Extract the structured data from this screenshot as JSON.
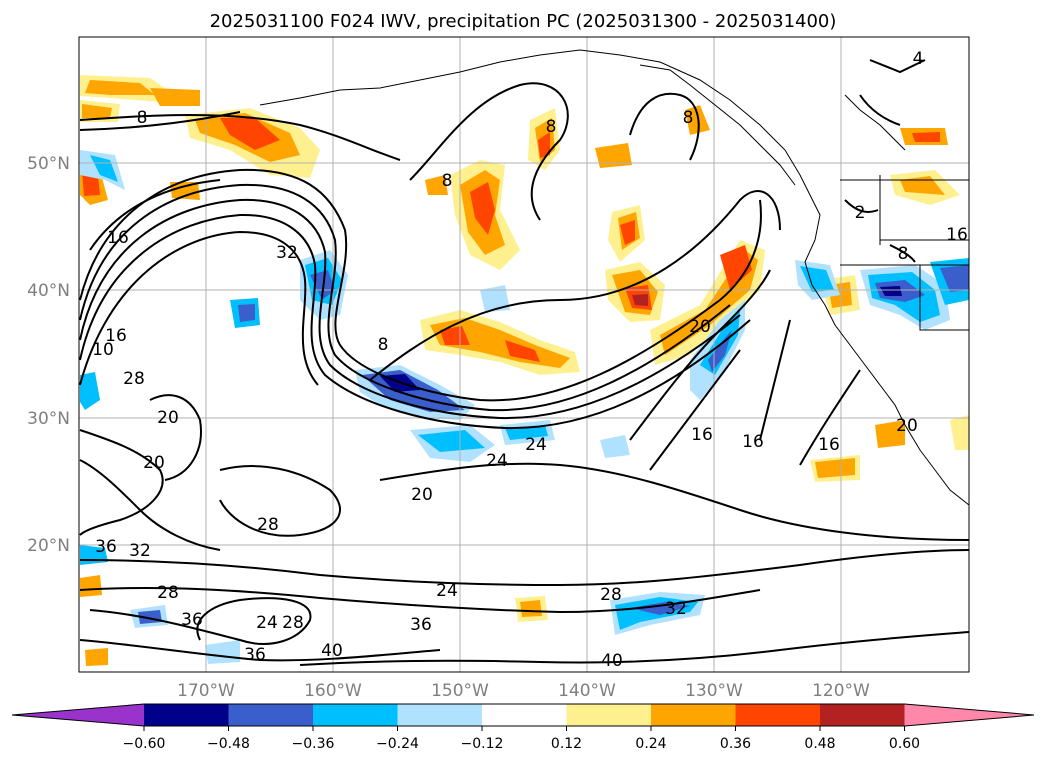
{
  "title": "2025031100 F024 IWV, precipitation PC (2025031300 - 2025031400)",
  "lat_labels": [
    "50°N",
    "40°N",
    "30°N",
    "20°N"
  ],
  "lon_labels": [
    "170°W",
    "160°W",
    "150°W",
    "140°W",
    "130°W",
    "120°W"
  ],
  "colorbar": {
    "ticks": [
      "−0.60",
      "−0.48",
      "−0.36",
      "−0.24",
      "−0.12",
      "0.12",
      "0.24",
      "0.36",
      "0.48",
      "0.60"
    ],
    "colors": [
      "#9933cc",
      "#00008b",
      "#3a5fcd",
      "#00bfff",
      "#b0e2ff",
      "#ffffff",
      "#fff08f",
      "#ffa500",
      "#ff4500",
      "#b22222",
      "#ff88aa"
    ]
  },
  "contour_labels": [
    "4",
    "8",
    "8",
    "8",
    "8",
    "8",
    "8",
    "16",
    "16",
    "16",
    "16",
    "16",
    "16",
    "20",
    "20",
    "20",
    "20",
    "20",
    "24",
    "24",
    "24",
    "24",
    "28",
    "28",
    "28",
    "28",
    "28",
    "32",
    "32",
    "32",
    "36",
    "36",
    "36",
    "36",
    "40",
    "40",
    "10",
    "2"
  ]
}
